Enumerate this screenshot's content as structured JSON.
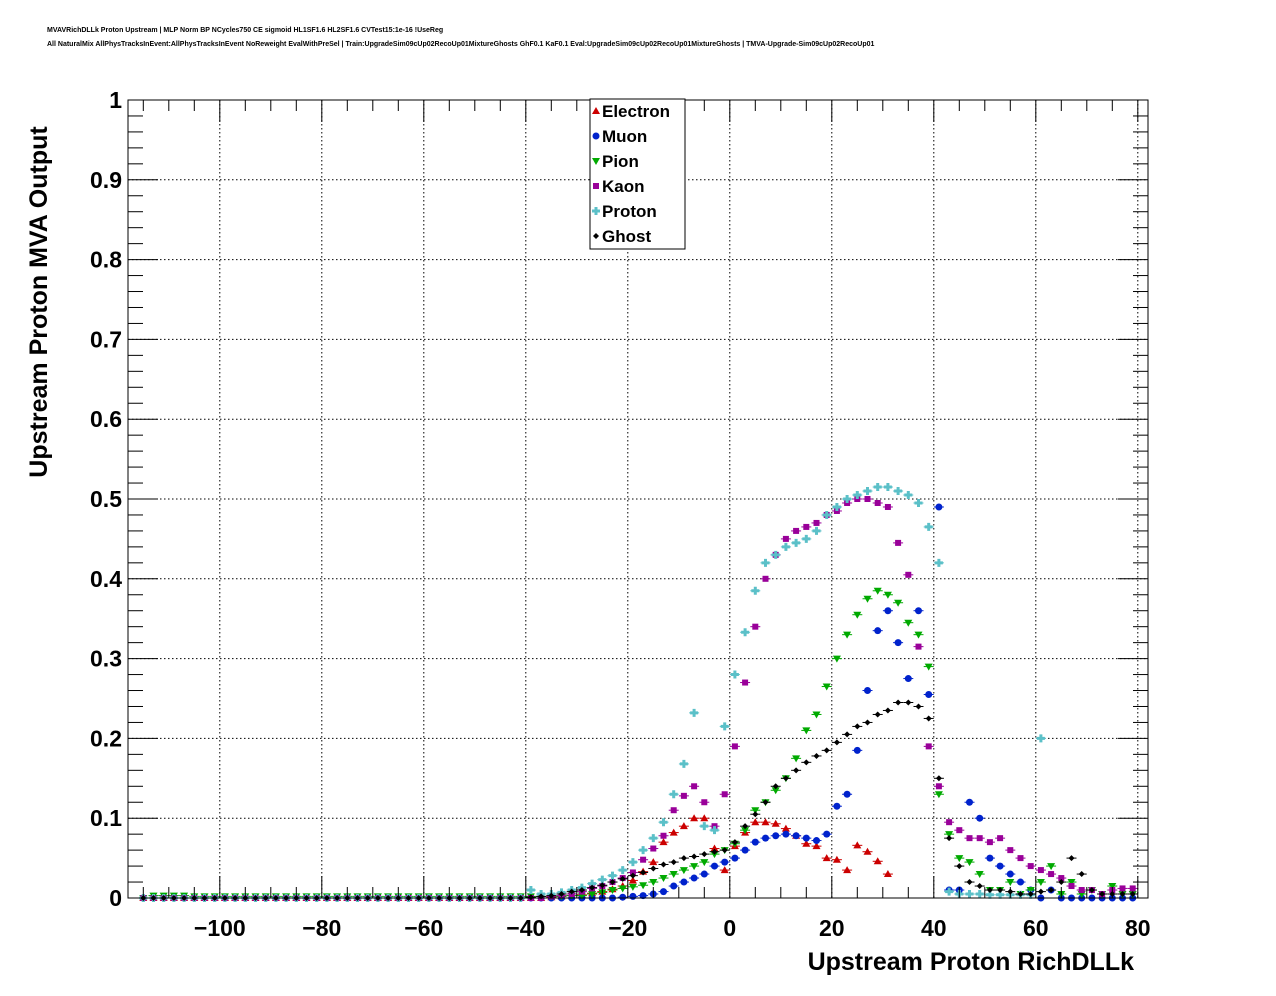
{
  "header": {
    "line1": "MVAVRichDLLk Proton Upstream | MLP Norm BP NCycles750 CE sigmoid HL1SF1.6 HL2SF1.6 CVTest15:1e-16 !UseReg",
    "line2": "All NaturalMix AllPhysTracksInEvent:AllPhysTracksInEvent NoReweight EvalWithPreSel | Train:UpgradeSim09cUp02RecoUp01MixtureGhosts GhF0.1 KaF0.1 Eval:UpgradeSim09cUp02RecoUp01MixtureGhosts | TMVA-Upgrade-Sim09cUp02RecoUp01"
  },
  "chart_data": {
    "type": "scatter",
    "xlabel": "Upstream Proton RichDLLk",
    "ylabel": "Upstream Proton MVA Output",
    "xlim": [
      -118,
      82
    ],
    "ylim": [
      0,
      1
    ],
    "x_ticks": [
      -100,
      -80,
      -60,
      -40,
      -20,
      0,
      20,
      40,
      60,
      80
    ],
    "x_tick_labels": [
      "−100",
      "−80",
      "−60",
      "−40",
      "−20",
      "0",
      "20",
      "40",
      "60",
      "80"
    ],
    "y_ticks": [
      0,
      0.1,
      0.2,
      0.3,
      0.4,
      0.5,
      0.6,
      0.7,
      0.8,
      0.9,
      1
    ],
    "y_tick_labels": [
      "0",
      "0.1",
      "0.2",
      "0.3",
      "0.4",
      "0.5",
      "0.6",
      "0.7",
      "0.8",
      "0.9",
      "1"
    ],
    "grid": true,
    "legend_position": "top-center",
    "series": [
      {
        "name": "Electron",
        "color": "#cc0000",
        "marker": "triangle-up",
        "x": [
          -115,
          -113,
          -111,
          -109,
          -107,
          -105,
          -103,
          -101,
          -99,
          -97,
          -95,
          -93,
          -91,
          -89,
          -87,
          -85,
          -83,
          -81,
          -79,
          -77,
          -75,
          -73,
          -71,
          -69,
          -67,
          -65,
          -63,
          -61,
          -59,
          -57,
          -55,
          -53,
          -51,
          -49,
          -47,
          -45,
          -43,
          -41,
          -39,
          -37,
          -35,
          -33,
          -31,
          -29,
          -27,
          -25,
          -23,
          -21,
          -19,
          -17,
          -15,
          -13,
          -11,
          -9,
          -7,
          -5,
          -3,
          -1,
          1,
          3,
          5,
          7,
          9,
          11,
          13,
          15,
          17,
          19,
          21,
          23,
          25,
          27,
          29,
          31
        ],
        "y": [
          0,
          0,
          0,
          0,
          0,
          0,
          0,
          0,
          0,
          0,
          0,
          0,
          0,
          0,
          0,
          0,
          0,
          0,
          0,
          0,
          0,
          0,
          0,
          0,
          0,
          0,
          0,
          0,
          0,
          0,
          0,
          0,
          0,
          0,
          0,
          0,
          0,
          0,
          0,
          0,
          0.001,
          0.002,
          0.003,
          0.004,
          0.006,
          0.008,
          0.011,
          0.015,
          0.022,
          0.033,
          0.045,
          0.07,
          0.082,
          0.09,
          0.1,
          0.1,
          0.062,
          0.035,
          0.065,
          0.082,
          0.095,
          0.095,
          0.093,
          0.087,
          0.078,
          0.068,
          0.065,
          0.05,
          0.048,
          0.035,
          0.066,
          0.058,
          0.046,
          0.03
        ]
      },
      {
        "name": "Muon",
        "color": "#0022cc",
        "marker": "circle",
        "x": [
          -115,
          -113,
          -111,
          -109,
          -107,
          -105,
          -103,
          -101,
          -99,
          -97,
          -95,
          -93,
          -91,
          -89,
          -87,
          -85,
          -83,
          -81,
          -79,
          -77,
          -75,
          -73,
          -71,
          -69,
          -67,
          -65,
          -63,
          -61,
          -59,
          -57,
          -55,
          -53,
          -51,
          -49,
          -47,
          -45,
          -43,
          -41,
          -39,
          -37,
          -35,
          -33,
          -31,
          -29,
          -27,
          -25,
          -23,
          -21,
          -19,
          -17,
          -15,
          -13,
          -11,
          -9,
          -7,
          -5,
          -3,
          -1,
          1,
          3,
          5,
          7,
          9,
          11,
          13,
          15,
          17,
          19,
          21,
          23,
          25,
          27,
          29,
          31,
          33,
          35,
          37,
          39,
          41,
          43,
          45,
          47,
          49,
          51,
          53,
          55,
          57,
          59,
          61,
          63,
          65,
          67,
          69,
          71,
          73,
          75,
          77,
          79
        ],
        "y": [
          0,
          0,
          0,
          0,
          0,
          0,
          0,
          0,
          0,
          0,
          0,
          0,
          0,
          0,
          0,
          0,
          0,
          0,
          0,
          0,
          0,
          0,
          0,
          0,
          0,
          0,
          0,
          0,
          0,
          0,
          0,
          0,
          0,
          0,
          0,
          0,
          0,
          0,
          0,
          0,
          0,
          0,
          0,
          0,
          0,
          0,
          0,
          0.001,
          0.002,
          0.003,
          0.005,
          0.008,
          0.015,
          0.02,
          0.025,
          0.03,
          0.04,
          0.045,
          0.05,
          0.06,
          0.07,
          0.075,
          0.078,
          0.08,
          0.078,
          0.075,
          0.072,
          0.08,
          0.115,
          0.13,
          0.185,
          0.26,
          0.335,
          0.36,
          0.32,
          0.275,
          0.36,
          0.255,
          0.49,
          0.01,
          0.01,
          0.12,
          0.1,
          0.05,
          0.04,
          0.03,
          0.02,
          0.01,
          0.0,
          0.01,
          0.0,
          0.0,
          0.0,
          0.0,
          0.0,
          0.0,
          0.0,
          0.0
        ]
      },
      {
        "name": "Pion",
        "color": "#00aa00",
        "marker": "triangle-down",
        "x": [
          -115,
          -113,
          -111,
          -109,
          -107,
          -105,
          -103,
          -101,
          -99,
          -97,
          -95,
          -93,
          -91,
          -89,
          -87,
          -85,
          -83,
          -81,
          -79,
          -77,
          -75,
          -73,
          -71,
          -69,
          -67,
          -65,
          -63,
          -61,
          -59,
          -57,
          -55,
          -53,
          -51,
          -49,
          -47,
          -45,
          -43,
          -41,
          -39,
          -37,
          -35,
          -33,
          -31,
          -29,
          -27,
          -25,
          -23,
          -21,
          -19,
          -17,
          -15,
          -13,
          -11,
          -9,
          -7,
          -5,
          -3,
          -1,
          1,
          3,
          5,
          7,
          9,
          11,
          13,
          15,
          17,
          19,
          21,
          23,
          25,
          27,
          29,
          31,
          33,
          35,
          37,
          39,
          41,
          43,
          45,
          47,
          49,
          51,
          53,
          55,
          57,
          59,
          61,
          63,
          65,
          67,
          69,
          71,
          73,
          75,
          77,
          79
        ],
        "y": [
          0,
          0.003,
          0.003,
          0.003,
          0.003,
          0.002,
          0.002,
          0.002,
          0.002,
          0.002,
          0.002,
          0.002,
          0.002,
          0.002,
          0.002,
          0.002,
          0.002,
          0.002,
          0.002,
          0.002,
          0.002,
          0.002,
          0.002,
          0.002,
          0.002,
          0.002,
          0.002,
          0.002,
          0.002,
          0.002,
          0.002,
          0.002,
          0.002,
          0.002,
          0.002,
          0.002,
          0.002,
          0.002,
          0.002,
          0.002,
          0.002,
          0.002,
          0.003,
          0.003,
          0.005,
          0.007,
          0.01,
          0.012,
          0.014,
          0.016,
          0.02,
          0.025,
          0.03,
          0.035,
          0.04,
          0.045,
          0.055,
          0.06,
          0.068,
          0.085,
          0.11,
          0.12,
          0.135,
          0.15,
          0.175,
          0.21,
          0.23,
          0.265,
          0.3,
          0.33,
          0.355,
          0.375,
          0.385,
          0.38,
          0.37,
          0.345,
          0.33,
          0.29,
          0.13,
          0.08,
          0.05,
          0.045,
          0.03,
          0.01,
          0.01,
          0.02,
          0.005,
          0.01,
          0.02,
          0.04,
          0.005,
          0.02,
          0.005,
          0.01,
          0.005,
          0.015,
          0.005,
          0.005
        ]
      },
      {
        "name": "Kaon",
        "color": "#990099",
        "marker": "square",
        "x": [
          -115,
          -113,
          -111,
          -109,
          -107,
          -105,
          -103,
          -101,
          -99,
          -97,
          -95,
          -93,
          -91,
          -89,
          -87,
          -85,
          -83,
          -81,
          -79,
          -77,
          -75,
          -73,
          -71,
          -69,
          -67,
          -65,
          -63,
          -61,
          -59,
          -57,
          -55,
          -53,
          -51,
          -49,
          -47,
          -45,
          -43,
          -41,
          -39,
          -37,
          -35,
          -33,
          -31,
          -29,
          -27,
          -25,
          -23,
          -21,
          -19,
          -17,
          -15,
          -13,
          -11,
          -9,
          -7,
          -5,
          -3,
          -1,
          1,
          3,
          5,
          7,
          9,
          11,
          13,
          15,
          17,
          19,
          21,
          23,
          25,
          27,
          29,
          31,
          33,
          35,
          37,
          39,
          41,
          43,
          45,
          47,
          49,
          51,
          53,
          55,
          57,
          59,
          61,
          63,
          65,
          67,
          69,
          71,
          73,
          75,
          77,
          79
        ],
        "y": [
          0,
          0,
          0,
          0,
          0,
          0,
          0,
          0,
          0,
          0,
          0,
          0,
          0,
          0,
          0,
          0,
          0,
          0,
          0,
          0,
          0,
          0,
          0,
          0,
          0,
          0,
          0,
          0,
          0,
          0,
          0,
          0,
          0,
          0,
          0,
          0,
          0,
          0,
          0,
          0,
          0.002,
          0.003,
          0.005,
          0.008,
          0.012,
          0.015,
          0.02,
          0.025,
          0.032,
          0.048,
          0.062,
          0.078,
          0.11,
          0.128,
          0.14,
          0.12,
          0.09,
          0.13,
          0.19,
          0.27,
          0.34,
          0.4,
          0.43,
          0.45,
          0.46,
          0.465,
          0.47,
          0.48,
          0.485,
          0.495,
          0.5,
          0.5,
          0.495,
          0.49,
          0.445,
          0.405,
          0.315,
          0.19,
          0.14,
          0.095,
          0.085,
          0.075,
          0.075,
          0.07,
          0.075,
          0.06,
          0.05,
          0.04,
          0.035,
          0.03,
          0.025,
          0.015,
          0.01,
          0.01,
          0.005,
          0.01,
          0.012,
          0.012
        ]
      },
      {
        "name": "Proton",
        "color": "#5bc0c8",
        "marker": "cross",
        "x": [
          -115,
          -113,
          -111,
          -109,
          -107,
          -105,
          -103,
          -101,
          -99,
          -97,
          -95,
          -93,
          -91,
          -89,
          -87,
          -85,
          -83,
          -81,
          -79,
          -77,
          -75,
          -73,
          -71,
          -69,
          -67,
          -65,
          -63,
          -61,
          -59,
          -57,
          -55,
          -53,
          -51,
          -49,
          -47,
          -45,
          -43,
          -41,
          -39,
          -37,
          -35,
          -33,
          -31,
          -29,
          -27,
          -25,
          -23,
          -21,
          -19,
          -17,
          -15,
          -13,
          -11,
          -9,
          -7,
          -5,
          -3,
          -1,
          1,
          3,
          5,
          7,
          9,
          11,
          13,
          15,
          17,
          19,
          21,
          23,
          25,
          27,
          29,
          31,
          33,
          35,
          37,
          39,
          41,
          43,
          45,
          47,
          49,
          51,
          53,
          55,
          57,
          59,
          61
        ],
        "y": [
          0,
          0,
          0,
          0,
          0,
          0,
          0,
          0,
          0,
          0,
          0,
          0,
          0,
          0,
          0,
          0,
          0,
          0,
          0,
          0,
          0,
          0,
          0,
          0,
          0,
          0,
          0,
          0,
          0,
          0,
          0,
          0,
          0,
          0,
          0,
          0,
          0,
          0,
          0.01,
          0.005,
          0.005,
          0.007,
          0.01,
          0.013,
          0.018,
          0.023,
          0.028,
          0.035,
          0.045,
          0.06,
          0.075,
          0.095,
          0.13,
          0.168,
          0.232,
          0.09,
          0.085,
          0.215,
          0.28,
          0.333,
          0.385,
          0.42,
          0.43,
          0.44,
          0.445,
          0.45,
          0.46,
          0.48,
          0.49,
          0.5,
          0.505,
          0.51,
          0.515,
          0.515,
          0.51,
          0.505,
          0.495,
          0.465,
          0.42,
          0.008,
          0.005,
          0.005,
          0.005,
          0.004,
          0.004,
          0.004,
          0.004,
          0.004,
          0.2
        ]
      },
      {
        "name": "Ghost",
        "color": "#000000",
        "marker": "diamond",
        "x": [
          -115,
          -113,
          -111,
          -109,
          -107,
          -105,
          -103,
          -101,
          -99,
          -97,
          -95,
          -93,
          -91,
          -89,
          -87,
          -85,
          -83,
          -81,
          -79,
          -77,
          -75,
          -73,
          -71,
          -69,
          -67,
          -65,
          -63,
          -61,
          -59,
          -57,
          -55,
          -53,
          -51,
          -49,
          -47,
          -45,
          -43,
          -41,
          -39,
          -37,
          -35,
          -33,
          -31,
          -29,
          -27,
          -25,
          -23,
          -21,
          -19,
          -17,
          -15,
          -13,
          -11,
          -9,
          -7,
          -5,
          -3,
          -1,
          1,
          3,
          5,
          7,
          9,
          11,
          13,
          15,
          17,
          19,
          21,
          23,
          25,
          27,
          29,
          31,
          33,
          35,
          37,
          39,
          41,
          43,
          45,
          47,
          49,
          51,
          53,
          55,
          57,
          59,
          61,
          63,
          65,
          67,
          69,
          71,
          73,
          75,
          77,
          79
        ],
        "y": [
          0,
          0,
          0,
          0,
          0,
          0,
          0,
          0,
          0,
          0,
          0,
          0,
          0,
          0,
          0,
          0,
          0,
          0,
          0,
          0,
          0,
          0,
          0,
          0,
          0,
          0,
          0,
          0,
          0,
          0,
          0,
          0,
          0,
          0,
          0,
          0,
          0,
          0,
          0.001,
          0.002,
          0.003,
          0.005,
          0.008,
          0.01,
          0.013,
          0.016,
          0.02,
          0.024,
          0.028,
          0.032,
          0.037,
          0.042,
          0.045,
          0.05,
          0.052,
          0.055,
          0.058,
          0.06,
          0.07,
          0.09,
          0.105,
          0.12,
          0.14,
          0.15,
          0.16,
          0.17,
          0.178,
          0.185,
          0.195,
          0.205,
          0.215,
          0.22,
          0.23,
          0.235,
          0.245,
          0.245,
          0.24,
          0.225,
          0.15,
          0.075,
          0.04,
          0.02,
          0.015,
          0.01,
          0.01,
          0.008,
          0.005,
          0.005,
          0.008,
          0.01,
          0.02,
          0.05,
          0.03,
          0.01,
          0.005,
          0.005,
          0.005,
          0.005
        ]
      }
    ]
  }
}
